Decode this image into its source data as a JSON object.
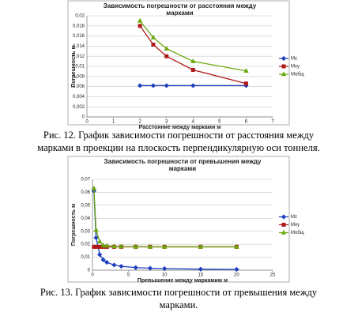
{
  "chart_data": [
    {
      "type": "line",
      "title": [
        "Зависимость погрешности от расстояния между",
        "марками"
      ],
      "x_label": "Расстояние между марками м",
      "y_label": "Погрешность м",
      "caption": [
        "Рис. 12. График зависимости погрешности от расстояния между",
        "марками в проекции на плоскость перпендикулярную оси тоннеля."
      ],
      "x": [
        2,
        2.5,
        3,
        4,
        6
      ],
      "xlim": [
        0,
        7
      ],
      "xticks": [
        0,
        1,
        2,
        3,
        4,
        5,
        6,
        7
      ],
      "ylim": [
        0,
        0.02
      ],
      "yticks": [
        0,
        {
          "value": 0.002,
          "label": "0,002"
        },
        {
          "value": 0.004,
          "label": "0,004"
        },
        {
          "value": 0.006,
          "label": "0,006"
        },
        {
          "value": 0.008,
          "label": "0,008"
        },
        {
          "value": 0.01,
          "label": "0,01"
        },
        {
          "value": 0.012,
          "label": "0,012"
        },
        {
          "value": 0.014,
          "label": "0,014"
        },
        {
          "value": 0.016,
          "label": "0,016"
        },
        {
          "value": 0.018,
          "label": "0,018"
        },
        {
          "value": 0.02,
          "label": "0,02"
        }
      ],
      "grid": true,
      "legend": "right",
      "series": [
        {
          "name": "Mz",
          "color": "#1f3fbf",
          "marker": "diamond",
          "values": [
            0.0062,
            0.0062,
            0.0062,
            0.0062,
            0.0062
          ]
        },
        {
          "name": "Mxy",
          "color": "#b01818",
          "marker": "square",
          "values": [
            0.018,
            0.0143,
            0.012,
            0.0093,
            0.0066
          ]
        },
        {
          "name": "Mобщ",
          "color": "#6aa80e",
          "marker": "triangle",
          "values": [
            0.019,
            0.0157,
            0.0135,
            0.011,
            0.0091
          ]
        }
      ]
    },
    {
      "type": "line",
      "title": [
        "Зависимость погрешности от превышения между",
        "марками"
      ],
      "x_label": "Превышение между маркамим м",
      "y_label": "Погрешность м",
      "caption": [
        "Рис. 13. График зависимости погрешности от превышения между",
        "марками."
      ],
      "x": [
        0.2,
        0.5,
        1,
        1.5,
        2,
        3,
        4,
        6,
        8,
        10,
        15,
        20
      ],
      "xlim": [
        0,
        25
      ],
      "xticks": [
        0,
        5,
        10,
        15,
        20,
        25
      ],
      "ylim": [
        0,
        0.07
      ],
      "yticks": [
        0,
        {
          "value": 0.01,
          "label": "0,01"
        },
        {
          "value": 0.02,
          "label": "0,02"
        },
        {
          "value": 0.03,
          "label": "0,03"
        },
        {
          "value": 0.04,
          "label": "0,04"
        },
        {
          "value": 0.05,
          "label": "0,05"
        },
        {
          "value": 0.06,
          "label": "0,06"
        },
        {
          "value": 0.07,
          "label": "0,07"
        }
      ],
      "grid": true,
      "legend": "right",
      "series": [
        {
          "name": "Mz",
          "color": "#1f3fbf",
          "marker": "diamond",
          "values": [
            0.061,
            0.025,
            0.012,
            0.008,
            0.006,
            0.004,
            0.003,
            0.002,
            0.0015,
            0.0012,
            0.0008,
            0.0006
          ]
        },
        {
          "name": "Mxy",
          "color": "#b01818",
          "marker": "square",
          "values": [
            0.018,
            0.018,
            0.018,
            0.018,
            0.018,
            0.018,
            0.018,
            0.018,
            0.018,
            0.018,
            0.018,
            0.018
          ]
        },
        {
          "name": "Mобщ",
          "color": "#6aa80e",
          "marker": "triangle",
          "values": [
            0.063,
            0.031,
            0.022,
            0.019,
            0.0188,
            0.0184,
            0.0182,
            0.0181,
            0.018,
            0.018,
            0.018,
            0.018
          ]
        }
      ]
    }
  ]
}
